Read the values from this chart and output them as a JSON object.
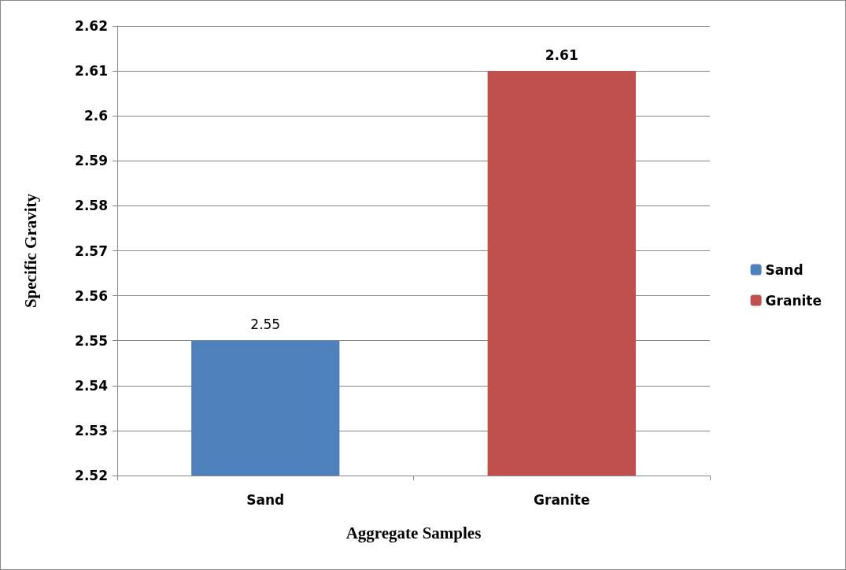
{
  "chart_data": {
    "type": "bar",
    "xlabel": "Aggregate Samples",
    "ylabel": "Specific Gravity",
    "categories": [
      "Sand",
      "Granite"
    ],
    "series": [
      {
        "name": "Sand",
        "color": "#4f81bd",
        "values": [
          2.55,
          null
        ]
      },
      {
        "name": "Granite",
        "color": "#c0504d",
        "values": [
          null,
          2.61
        ]
      }
    ],
    "ylim": [
      2.52,
      2.62
    ],
    "yticks": [
      2.52,
      2.53,
      2.54,
      2.55,
      2.56,
      2.57,
      2.58,
      2.59,
      2.6,
      2.61,
      2.62
    ],
    "grid": "y",
    "legend": "right",
    "data_labels": true
  }
}
